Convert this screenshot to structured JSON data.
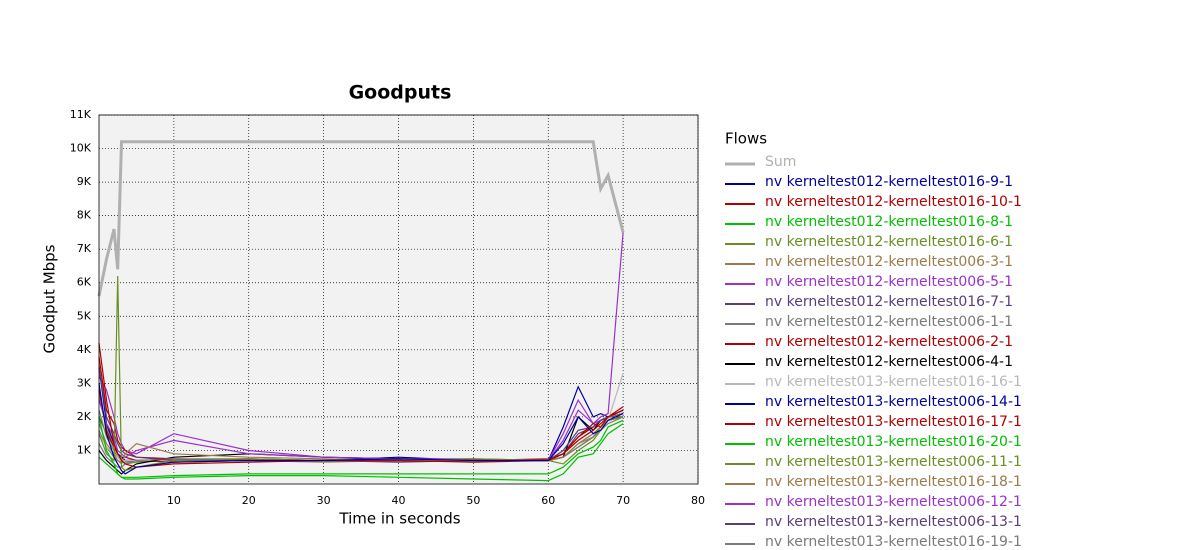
{
  "chart_data": {
    "type": "line",
    "title": "Goodputs",
    "x_label": "Time in seconds",
    "y_label": "Goodput Mbps",
    "legend_title": "Flows",
    "legend_position": "right",
    "grid": true,
    "xlim": [
      0,
      80
    ],
    "xticks": [
      10,
      20,
      30,
      40,
      50,
      60,
      70,
      80
    ],
    "ylim": [
      0,
      11000
    ],
    "yticks": [
      {
        "value": 1000,
        "label": "1K"
      },
      {
        "value": 2000,
        "label": "2K"
      },
      {
        "value": 3000,
        "label": "3K"
      },
      {
        "value": 4000,
        "label": "4K"
      },
      {
        "value": 5000,
        "label": "5K"
      },
      {
        "value": 6000,
        "label": "6K"
      },
      {
        "value": 7000,
        "label": "7K"
      },
      {
        "value": 8000,
        "label": "8K"
      },
      {
        "value": 9000,
        "label": "9K"
      },
      {
        "value": 10000,
        "label": "10K"
      },
      {
        "value": 11000,
        "label": "11K"
      }
    ],
    "x": [
      0,
      1,
      2,
      2.5,
      3,
      3.5,
      5,
      10,
      20,
      30,
      40,
      50,
      60,
      62,
      64,
      66,
      67,
      68,
      70
    ],
    "series": [
      {
        "name": "Sum",
        "color": "#b0b0b0",
        "values": [
          5600,
          6700,
          7600,
          6400,
          10200,
          10200,
          10200,
          10200,
          10200,
          10200,
          10200,
          10200,
          10200,
          10200,
          10200,
          10200,
          8800,
          9200,
          7500
        ]
      },
      {
        "name": "nv kerneltest012-kerneltest016-9-1",
        "color": "#0000a0",
        "values": [
          3000,
          1500,
          800,
          600,
          400,
          300,
          500,
          650,
          700,
          700,
          750,
          700,
          700,
          1200,
          2000,
          1500,
          1600,
          1900,
          2100
        ]
      },
      {
        "name": "nv kerneltest012-kerneltest016-10-1",
        "color": "#b00000",
        "values": [
          4200,
          2500,
          1200,
          900,
          700,
          600,
          500,
          600,
          650,
          700,
          700,
          650,
          700,
          900,
          1400,
          1800,
          1700,
          2000,
          2200
        ]
      },
      {
        "name": "nv kerneltest012-kerneltest016-8-1",
        "color": "#00c000",
        "values": [
          2000,
          1000,
          600,
          300,
          200,
          150,
          150,
          200,
          250,
          250,
          200,
          150,
          100,
          300,
          800,
          900,
          1200,
          1500,
          1800
        ]
      },
      {
        "name": "nv kerneltest012-kerneltest016-6-1",
        "color": "#6b8e23",
        "values": [
          1500,
          900,
          700,
          6200,
          500,
          400,
          500,
          700,
          750,
          700,
          700,
          750,
          700,
          600,
          1000,
          1300,
          1600,
          1900,
          2000
        ]
      },
      {
        "name": "nv kerneltest012-kerneltest006-3-1",
        "color": "#9c7a4a",
        "values": [
          1800,
          1200,
          900,
          700,
          600,
          900,
          1200,
          900,
          800,
          750,
          700,
          700,
          700,
          800,
          1200,
          1500,
          1700,
          2000,
          2100
        ]
      },
      {
        "name": "nv kerneltest012-kerneltest006-5-1",
        "color": "#9932cc",
        "values": [
          2500,
          1800,
          1400,
          1000,
          900,
          800,
          1000,
          1300,
          900,
          800,
          750,
          750,
          700,
          1500,
          2500,
          1800,
          2000,
          2100,
          7500
        ]
      },
      {
        "name": "nv kerneltest012-kerneltest016-7-1",
        "color": "#5a3d7a",
        "values": [
          3500,
          2000,
          1500,
          1200,
          1000,
          900,
          800,
          700,
          700,
          700,
          650,
          700,
          700,
          1000,
          1600,
          1700,
          1900,
          2000,
          2000
        ]
      },
      {
        "name": "nv kerneltest012-kerneltest006-1-1",
        "color": "#7a7a7a",
        "values": [
          1200,
          800,
          600,
          500,
          500,
          600,
          700,
          750,
          750,
          700,
          700,
          700,
          700,
          800,
          1100,
          1400,
          1700,
          1900,
          2000
        ]
      },
      {
        "name": "nv kerneltest012-kerneltest006-2-1",
        "color": "#b00000",
        "values": [
          3800,
          2200,
          1800,
          1300,
          1100,
          1000,
          800,
          750,
          700,
          700,
          700,
          700,
          750,
          900,
          1300,
          1600,
          1800,
          2000,
          2100
        ]
      },
      {
        "name": "nv kerneltest012-kerneltest006-4-1",
        "color": "#000000",
        "values": [
          1000,
          700,
          500,
          400,
          300,
          400,
          600,
          800,
          900,
          800,
          750,
          700,
          700,
          800,
          2000,
          1600,
          1900,
          2000,
          2100
        ]
      },
      {
        "name": "nv kerneltest013-kerneltest016-16-1",
        "color": "#b8b8b8",
        "values": [
          1500,
          1100,
          900,
          800,
          700,
          700,
          700,
          700,
          700,
          700,
          700,
          700,
          700,
          800,
          1200,
          1500,
          1700,
          1900,
          3300
        ]
      },
      {
        "name": "nv kerneltest013-kerneltest006-14-1",
        "color": "#0000a0",
        "values": [
          3500,
          1800,
          1200,
          900,
          800,
          700,
          700,
          700,
          750,
          700,
          800,
          700,
          700,
          1700,
          2900,
          2000,
          2100,
          2000,
          2200
        ]
      },
      {
        "name": "nv kerneltest013-kerneltest016-17-1",
        "color": "#b00000",
        "values": [
          2800,
          1600,
          1100,
          900,
          800,
          800,
          700,
          650,
          700,
          700,
          700,
          700,
          700,
          900,
          1400,
          1700,
          1900,
          2000,
          2300
        ]
      },
      {
        "name": "nv kerneltest013-kerneltest016-20-1",
        "color": "#00c000",
        "values": [
          800,
          600,
          400,
          300,
          200,
          200,
          200,
          250,
          300,
          300,
          300,
          300,
          300,
          500,
          900,
          1100,
          1300,
          1700,
          1900
        ]
      },
      {
        "name": "nv kerneltest013-kerneltest006-11-1",
        "color": "#6b8e23",
        "values": [
          2200,
          1400,
          1000,
          800,
          700,
          600,
          650,
          700,
          700,
          700,
          700,
          700,
          700,
          800,
          1200,
          1500,
          1700,
          1900,
          2000
        ]
      },
      {
        "name": "nv kerneltest013-kerneltest016-18-1",
        "color": "#9c7a4a",
        "values": [
          2600,
          1700,
          1200,
          900,
          800,
          700,
          700,
          700,
          700,
          650,
          700,
          700,
          700,
          800,
          1200,
          1400,
          1700,
          1900,
          2000
        ]
      },
      {
        "name": "nv kerneltest013-kerneltest006-12-1",
        "color": "#9932cc",
        "values": [
          3200,
          2800,
          2000,
          1500,
          1200,
          1000,
          900,
          1500,
          1000,
          800,
          750,
          700,
          700,
          1300,
          2200,
          1800,
          1900,
          2000,
          2200
        ]
      },
      {
        "name": "nv kerneltest013-kerneltest006-13-1",
        "color": "#5a3d7a",
        "values": [
          2000,
          1500,
          1100,
          900,
          800,
          700,
          700,
          700,
          700,
          700,
          700,
          700,
          700,
          900,
          1500,
          1700,
          1900,
          2000,
          2100
        ]
      },
      {
        "name": "nv kerneltest013-kerneltest016-19-1",
        "color": "#7a7a7a",
        "values": [
          1600,
          1100,
          800,
          700,
          650,
          650,
          700,
          700,
          700,
          700,
          700,
          700,
          700,
          800,
          1100,
          1400,
          1600,
          1800,
          2000
        ]
      }
    ]
  }
}
